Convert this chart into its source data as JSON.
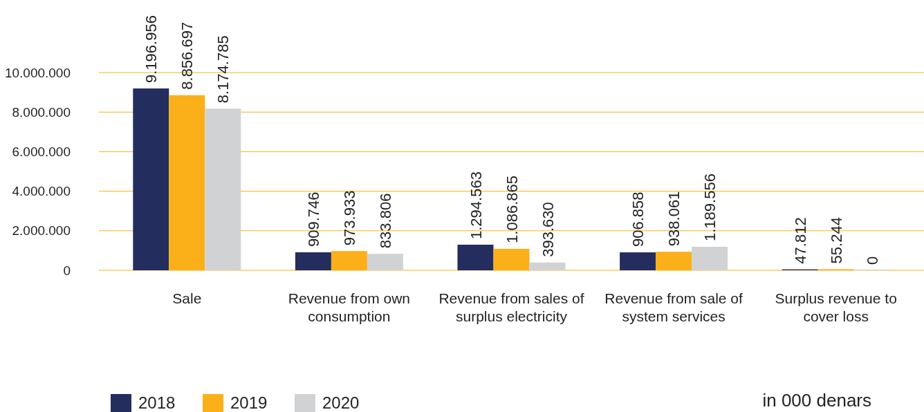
{
  "chart_data": {
    "type": "bar",
    "categories": [
      "Sale",
      "Revenue from own consumption",
      "Revenue from sales of surplus electricity",
      "Revenue from sale of system services",
      "Surplus revenue to cover loss"
    ],
    "series": [
      {
        "name": "2018",
        "color": "#232d5e",
        "values": [
          9196956,
          909746,
          1294563,
          906858,
          47812
        ],
        "value_labels": [
          "9.196.956",
          "909.746",
          "1.294.563",
          "906.858",
          "47.812"
        ]
      },
      {
        "name": "2019",
        "color": "#fbb01a",
        "values": [
          8856697,
          973933,
          1086865,
          938061,
          55244
        ],
        "value_labels": [
          "8.856.697",
          "973.933",
          "1.086.865",
          "938.061",
          "55.244"
        ]
      },
      {
        "name": "2020",
        "color": "#d1d2d4",
        "values": [
          8174785,
          833806,
          393630,
          1189556,
          0
        ],
        "value_labels": [
          "8.174.785",
          "833.806",
          "393.630",
          "1.189.556",
          "0"
        ]
      }
    ],
    "ylim": [
      0,
      10000000
    ],
    "yticks": [
      {
        "value": 0,
        "label": "0"
      },
      {
        "value": 2000000,
        "label": "2.000.000"
      },
      {
        "value": 4000000,
        "label": "4.000.000"
      },
      {
        "value": 6000000,
        "label": "6.000.000"
      },
      {
        "value": 8000000,
        "label": "8.000.000"
      },
      {
        "value": 10000000,
        "label": "10.000.000"
      }
    ],
    "grid": "y",
    "legend": "bottom",
    "annotations": [
      "in 000 denars"
    ]
  }
}
